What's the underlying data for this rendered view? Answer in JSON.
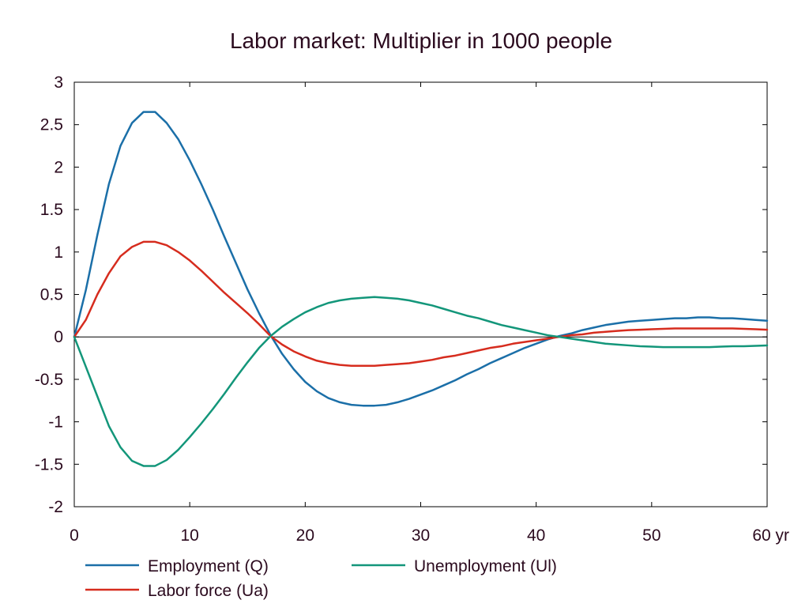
{
  "chart_data": {
    "type": "line",
    "title": "Labor market: Multiplier in 1000 people",
    "xlabel": "",
    "ylabel": "",
    "x_unit_label": "yr",
    "xlim": [
      0,
      60
    ],
    "ylim": [
      -2,
      3
    ],
    "x_ticks": [
      0,
      10,
      20,
      30,
      40,
      50,
      60
    ],
    "x_tick_labels": [
      "0",
      "10",
      "20",
      "30",
      "40",
      "50",
      "60 yr"
    ],
    "y_ticks": [
      3,
      2.5,
      2,
      1.5,
      1,
      0.5,
      0,
      -0.5,
      -1,
      -1.5,
      -2
    ],
    "y_tick_labels": [
      "3",
      "2.5",
      "2",
      "1.5",
      "1",
      "0.5",
      "0",
      "-0.5",
      "-1",
      "-1.5",
      "-2"
    ],
    "grid": false,
    "legend_position": "bottom",
    "x": [
      0,
      1,
      2,
      3,
      4,
      5,
      6,
      7,
      8,
      9,
      10,
      11,
      12,
      13,
      14,
      15,
      16,
      17,
      18,
      19,
      20,
      21,
      22,
      23,
      24,
      25,
      26,
      27,
      28,
      29,
      30,
      31,
      32,
      33,
      34,
      35,
      36,
      37,
      38,
      39,
      40,
      41,
      42,
      43,
      44,
      45,
      46,
      47,
      48,
      49,
      50,
      51,
      52,
      53,
      54,
      55,
      56,
      57,
      58,
      59,
      60
    ],
    "series": [
      {
        "name": "Employment (Q)",
        "color": "#1b6fa8",
        "values": [
          0,
          0.55,
          1.2,
          1.8,
          2.25,
          2.52,
          2.65,
          2.65,
          2.52,
          2.33,
          2.08,
          1.8,
          1.5,
          1.18,
          0.87,
          0.56,
          0.28,
          0.02,
          -0.2,
          -0.38,
          -0.53,
          -0.64,
          -0.72,
          -0.77,
          -0.8,
          -0.81,
          -0.81,
          -0.8,
          -0.77,
          -0.73,
          -0.68,
          -0.63,
          -0.57,
          -0.51,
          -0.44,
          -0.38,
          -0.31,
          -0.25,
          -0.19,
          -0.13,
          -0.08,
          -0.03,
          0.01,
          0.04,
          0.08,
          0.11,
          0.14,
          0.16,
          0.18,
          0.19,
          0.2,
          0.21,
          0.22,
          0.22,
          0.23,
          0.23,
          0.22,
          0.22,
          0.21,
          0.2,
          0.19
        ]
      },
      {
        "name": "Labor force (Ua)",
        "color": "#d62c1e",
        "values": [
          0,
          0.2,
          0.5,
          0.75,
          0.95,
          1.06,
          1.12,
          1.12,
          1.08,
          1.0,
          0.9,
          0.78,
          0.65,
          0.52,
          0.4,
          0.28,
          0.15,
          0.01,
          -0.09,
          -0.17,
          -0.23,
          -0.28,
          -0.31,
          -0.33,
          -0.34,
          -0.34,
          -0.34,
          -0.33,
          -0.32,
          -0.31,
          -0.29,
          -0.27,
          -0.24,
          -0.22,
          -0.19,
          -0.16,
          -0.13,
          -0.11,
          -0.08,
          -0.06,
          -0.04,
          -0.02,
          0,
          0.02,
          0.03,
          0.05,
          0.06,
          0.07,
          0.08,
          0.085,
          0.09,
          0.095,
          0.1,
          0.1,
          0.1,
          0.1,
          0.1,
          0.1,
          0.095,
          0.09,
          0.085
        ]
      },
      {
        "name": "Unemployment (Ul)",
        "color": "#13967a",
        "values": [
          0,
          -0.35,
          -0.7,
          -1.05,
          -1.3,
          -1.46,
          -1.52,
          -1.52,
          -1.45,
          -1.33,
          -1.18,
          -1.02,
          -0.85,
          -0.67,
          -0.48,
          -0.3,
          -0.13,
          0.01,
          0.12,
          0.21,
          0.29,
          0.35,
          0.4,
          0.43,
          0.45,
          0.46,
          0.47,
          0.46,
          0.45,
          0.43,
          0.4,
          0.37,
          0.33,
          0.29,
          0.25,
          0.22,
          0.18,
          0.14,
          0.11,
          0.08,
          0.05,
          0.02,
          0,
          -0.02,
          -0.04,
          -0.06,
          -0.08,
          -0.09,
          -0.1,
          -0.11,
          -0.115,
          -0.12,
          -0.12,
          -0.12,
          -0.12,
          -0.12,
          -0.115,
          -0.11,
          -0.11,
          -0.105,
          -0.1
        ]
      }
    ]
  }
}
